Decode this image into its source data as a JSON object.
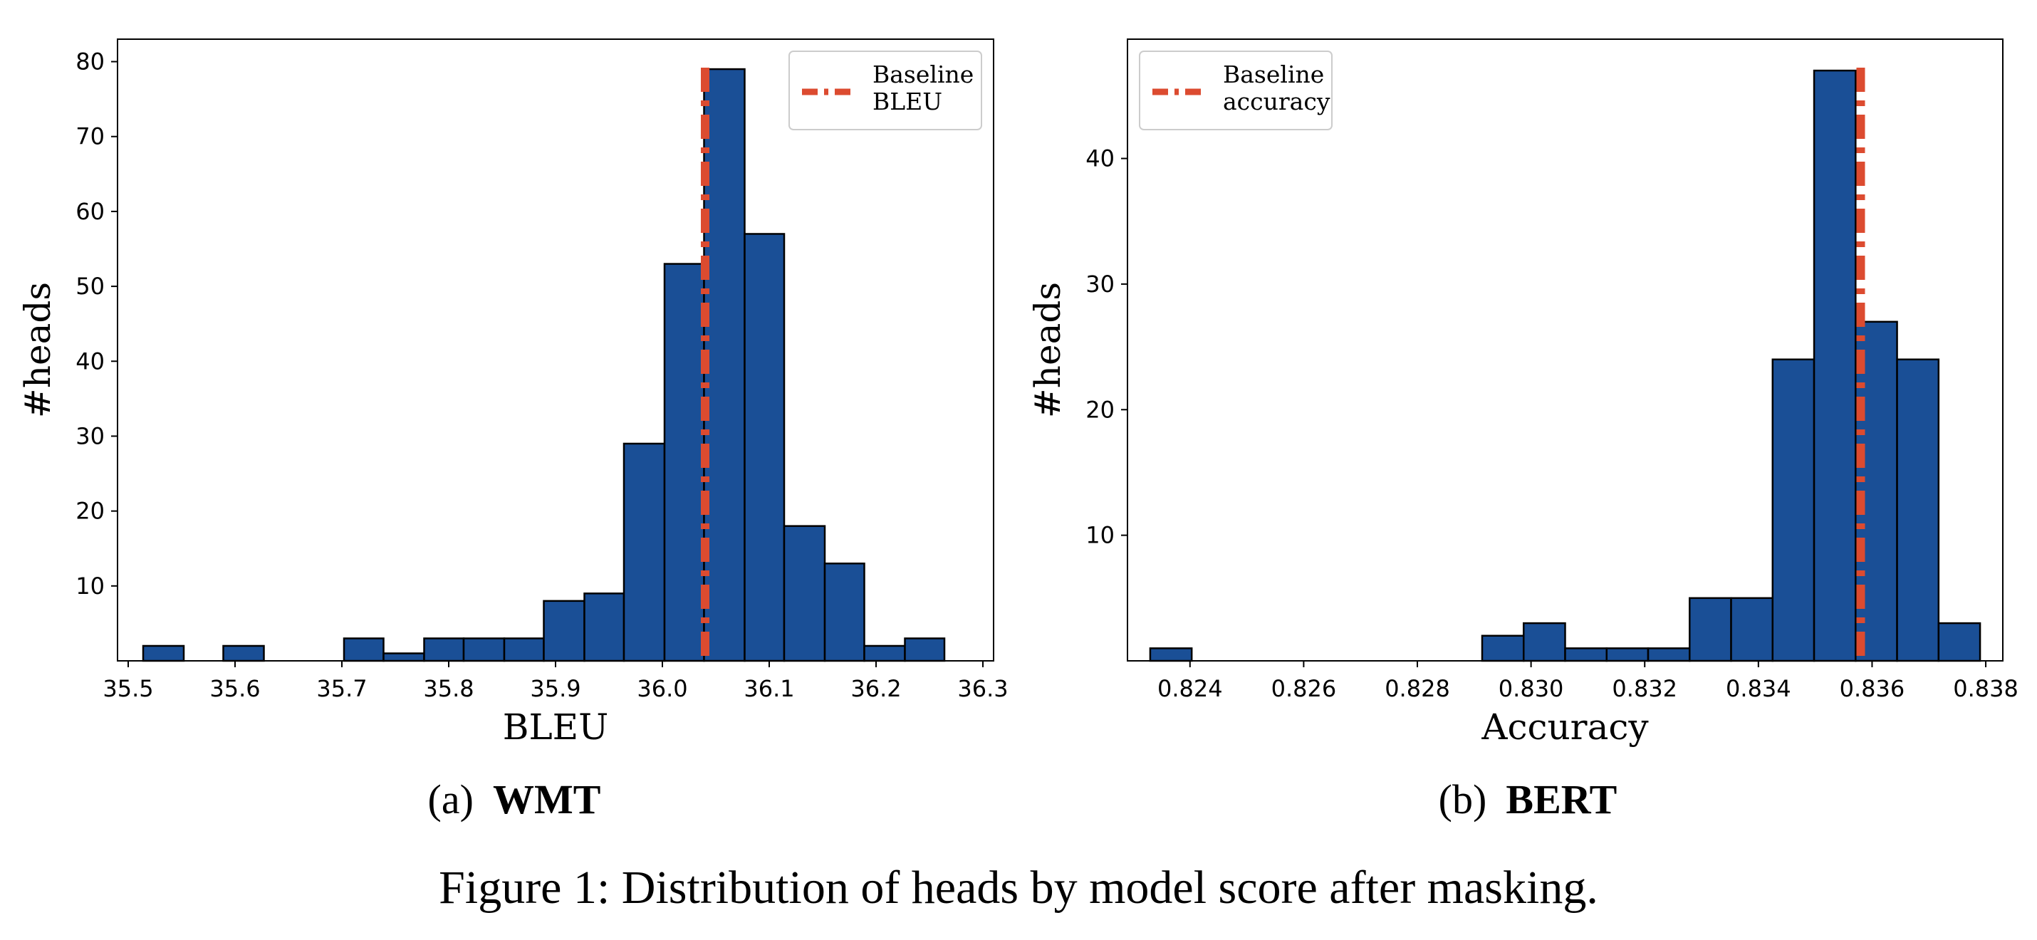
{
  "figure_caption": "Figure 1:  Distribution of heads by model score after masking.",
  "colors": {
    "bar_fill": "#1a4f96",
    "bar_edge": "#000000",
    "baseline": "#dc4b30"
  },
  "chart_data": [
    {
      "type": "bar",
      "subcaption_prefix": "(a)",
      "subcaption_name": "WMT",
      "xlabel": "BLEU",
      "ylabel": "#heads",
      "xlim": [
        35.49,
        36.31
      ],
      "ylim": [
        0,
        83
      ],
      "xticks": [
        "35.5",
        "35.6",
        "35.7",
        "35.8",
        "35.9",
        "36.0",
        "36.1",
        "36.2",
        "36.3"
      ],
      "yticks": [
        "10",
        "20",
        "30",
        "40",
        "50",
        "60",
        "70",
        "80"
      ],
      "bin_edges": [
        35.514,
        35.552,
        35.589,
        35.627,
        35.664,
        35.702,
        35.739,
        35.777,
        35.814,
        35.852,
        35.889,
        35.927,
        35.964,
        36.002,
        36.039,
        36.077,
        36.114,
        36.152,
        36.189,
        36.227,
        36.264,
        36.302
      ],
      "counts": [
        2,
        0,
        2,
        0,
        0,
        3,
        1,
        3,
        3,
        3,
        8,
        9,
        29,
        53,
        79,
        57,
        18,
        13,
        2,
        3,
        0
      ],
      "baseline_value": 36.04,
      "legend": {
        "line1": "Baseline",
        "line2": "BLEU",
        "position": "upper right"
      }
    },
    {
      "type": "bar",
      "subcaption_prefix": "(b)",
      "subcaption_name": "BERT",
      "xlabel": "Accuracy",
      "ylabel": "#heads",
      "xlim": [
        0.8229,
        0.8383
      ],
      "ylim": [
        0,
        49.5
      ],
      "xticks": [
        "0.824",
        "0.826",
        "0.828",
        "0.830",
        "0.832",
        "0.834",
        "0.836",
        "0.838"
      ],
      "yticks": [
        "10",
        "20",
        "30",
        "40"
      ],
      "bin_edges": [
        0.8233,
        0.82403,
        0.82476,
        0.82549,
        0.82622,
        0.82695,
        0.82768,
        0.82841,
        0.82914,
        0.82987,
        0.8306,
        0.83133,
        0.83206,
        0.83279,
        0.83352,
        0.83425,
        0.83498,
        0.83571,
        0.83644,
        0.83717,
        0.8379
      ],
      "counts": [
        1,
        0,
        0,
        0,
        0,
        0,
        0,
        0,
        2,
        3,
        1,
        1,
        1,
        5,
        5,
        24,
        47,
        27,
        24,
        3
      ],
      "baseline_value": 0.8358,
      "legend": {
        "line1": "Baseline",
        "line2": "accuracy",
        "position": "upper left"
      }
    }
  ]
}
